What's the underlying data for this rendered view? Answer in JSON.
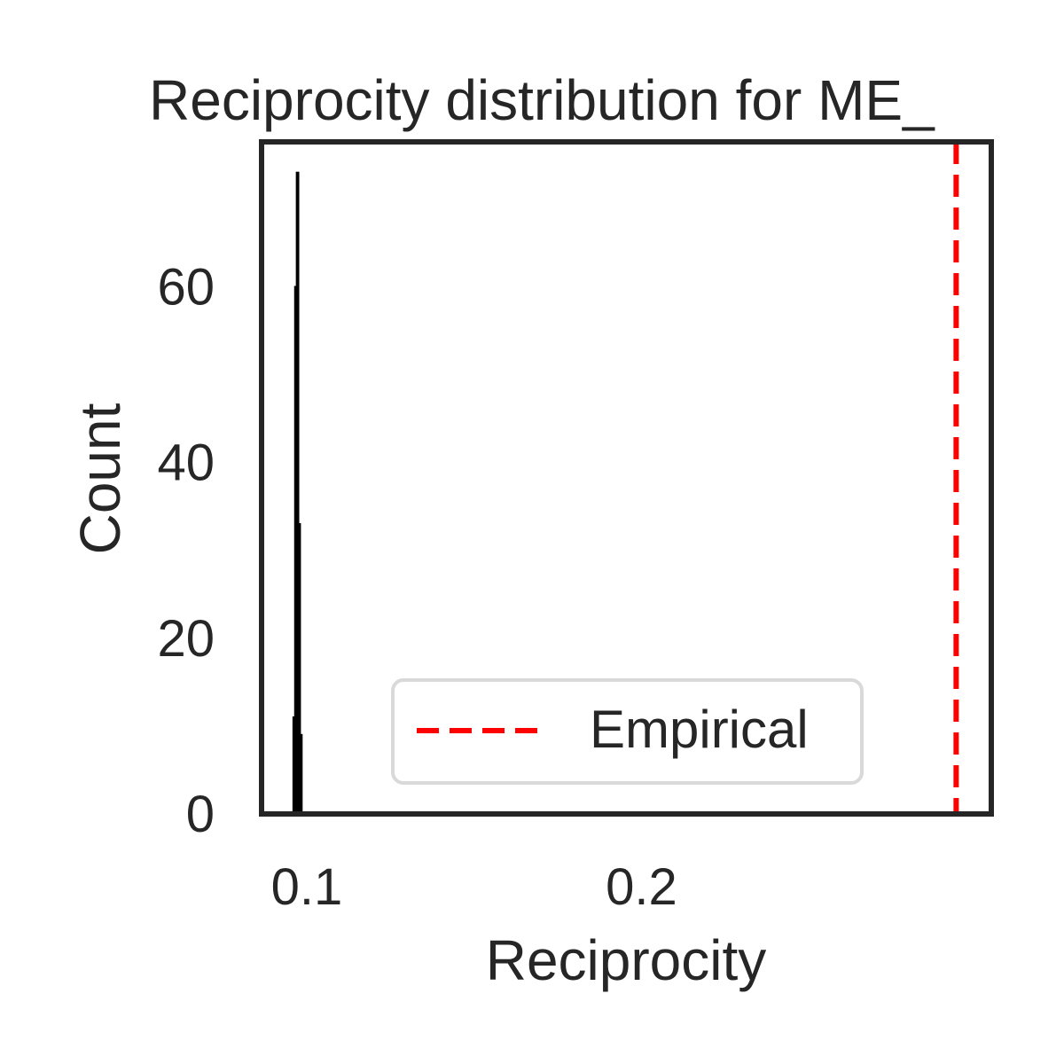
{
  "chart_data": {
    "type": "bar",
    "title": "Reciprocity distribution for ME_",
    "xlabel": "Reciprocity",
    "ylabel": "Count",
    "xlim": [
      0.0865,
      0.3045
    ],
    "ylim": [
      0,
      76.5
    ],
    "xticks": [
      0.1,
      0.2
    ],
    "xtick_labels": [
      "0.1",
      "0.2"
    ],
    "yticks": [
      0,
      20,
      40,
      60
    ],
    "ytick_labels": [
      "0",
      "20",
      "40",
      "60"
    ],
    "grid": false,
    "legend_position": "lower-center",
    "bars": [
      {
        "x0": 0.096,
        "x1": 0.0965,
        "count": 11
      },
      {
        "x0": 0.0965,
        "x1": 0.097,
        "count": 60
      },
      {
        "x0": 0.097,
        "x1": 0.0975,
        "count": 73
      },
      {
        "x0": 0.0975,
        "x1": 0.098,
        "count": 33
      },
      {
        "x0": 0.098,
        "x1": 0.0985,
        "count": 9
      }
    ],
    "reference_line": {
      "name": "Empirical",
      "x": 0.294,
      "color": "#ff0000",
      "style": "dashed"
    },
    "bar_color": "#000000",
    "frame_color": "#262626"
  }
}
